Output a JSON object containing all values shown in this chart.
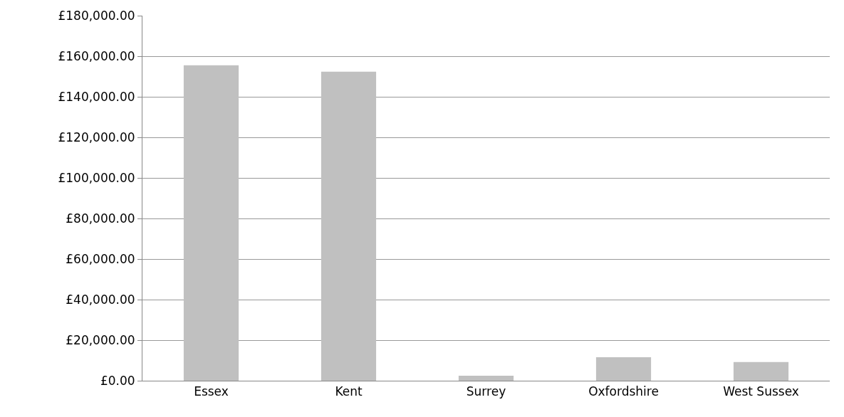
{
  "chart_data": {
    "type": "bar",
    "categories": [
      "Essex",
      "Kent",
      "Surrey",
      "Oxfordshire",
      "West Sussex"
    ],
    "values": [
      155500,
      152400,
      2500,
      11600,
      9200
    ],
    "color": "#c0c0c0",
    "ylim": [
      0,
      180000
    ],
    "yticks": [
      {
        "value": 0,
        "label": "£0.00"
      },
      {
        "value": 20000,
        "label": "£20,000.00"
      },
      {
        "value": 40000,
        "label": "£40,000.00"
      },
      {
        "value": 60000,
        "label": "£60,000.00"
      },
      {
        "value": 80000,
        "label": "£80,000.00"
      },
      {
        "value": 100000,
        "label": "£100,000.00"
      },
      {
        "value": 120000,
        "label": "£120,000.00"
      },
      {
        "value": 140000,
        "label": "£140,000.00"
      },
      {
        "value": 160000,
        "label": "£160,000.00"
      },
      {
        "value": 180000,
        "label": "£180,000.00"
      }
    ],
    "grid": "y"
  }
}
